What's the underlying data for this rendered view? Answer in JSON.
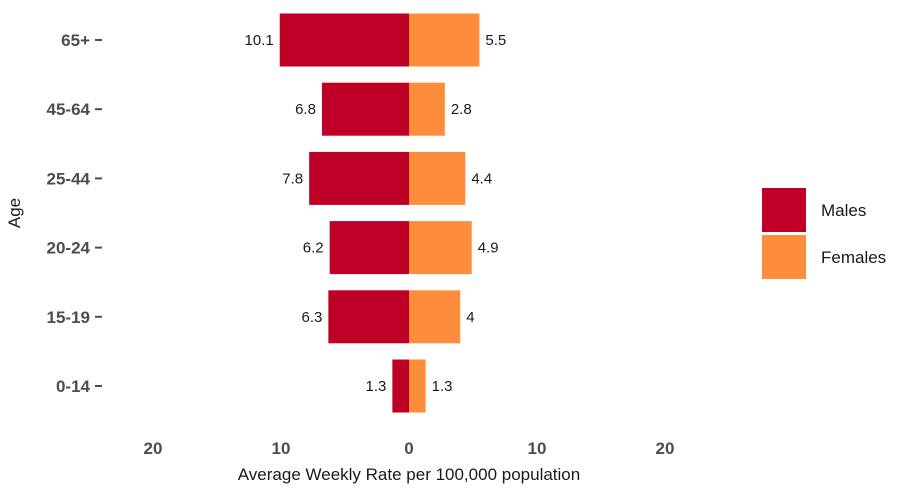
{
  "chart_data": {
    "type": "bar",
    "orientation": "horizontal",
    "layout": "diverging",
    "categories": [
      "0-14",
      "15-19",
      "20-24",
      "25-44",
      "45-64",
      "65+"
    ],
    "series": [
      {
        "name": "Males",
        "values": [
          1.3,
          6.3,
          6.2,
          7.8,
          6.8,
          10.1
        ],
        "color": "#be0027",
        "direction": "left"
      },
      {
        "name": "Females",
        "values": [
          1.3,
          4,
          4.9,
          4.4,
          2.8,
          5.5
        ],
        "color": "#fd8d3c",
        "direction": "right"
      }
    ],
    "xlabel": "Average Weekly Rate per 100,000 population",
    "ylabel": "Age",
    "xlim": [
      -20,
      20
    ],
    "xticks": [
      -20,
      -10,
      0,
      10,
      20
    ],
    "xtick_labels": [
      "20",
      "10",
      "0",
      "10",
      "20"
    ],
    "grid": false,
    "legend_position": "right"
  }
}
